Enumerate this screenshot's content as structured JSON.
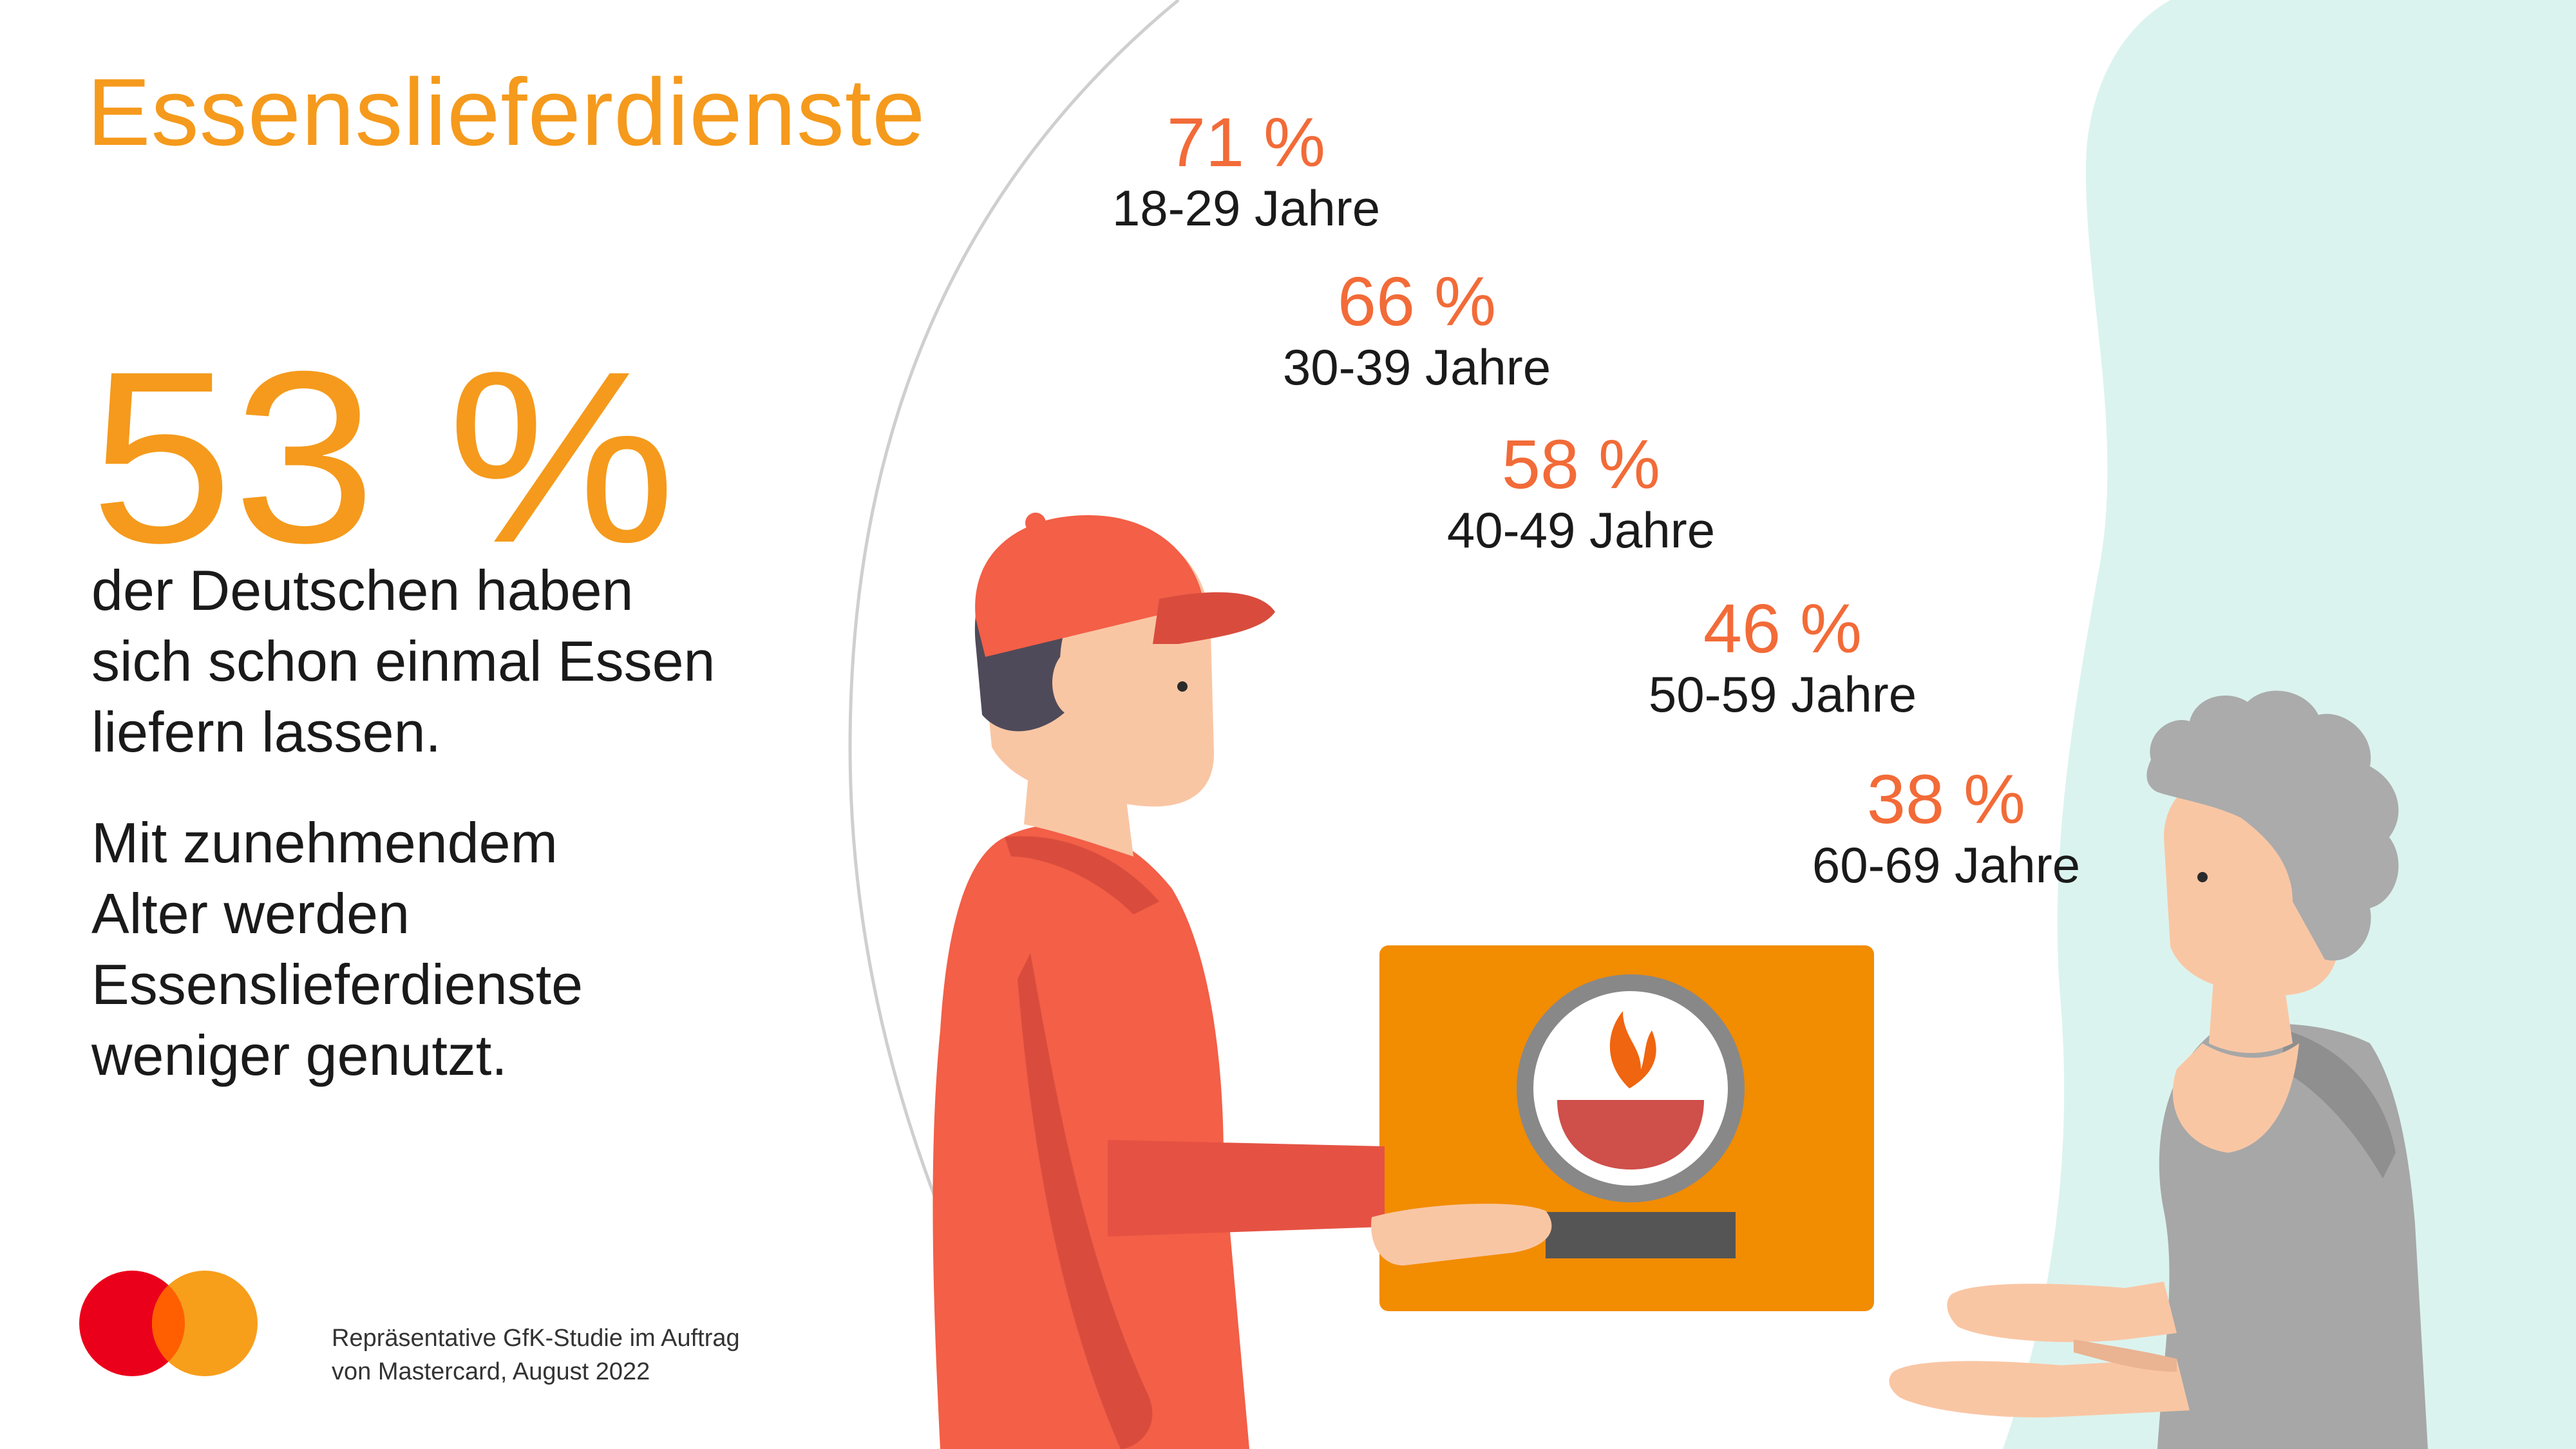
{
  "title": "Essenslieferdienste",
  "headline_stat": "53 %",
  "description_lines": [
    "der Deutschen haben",
    "sich schon einmal Essen",
    "liefern lassen."
  ],
  "trend_lines": [
    "Mit zunehmendem",
    "Alter werden",
    "Essenslieferdienste",
    "weniger genutzt."
  ],
  "age_stats": [
    {
      "value": "71 %",
      "age": "18-29 Jahre"
    },
    {
      "value": "66 %",
      "age": "30-39 Jahre"
    },
    {
      "value": "58 %",
      "age": "40-49 Jahre"
    },
    {
      "value": "46 %",
      "age": "50-59 Jahre"
    },
    {
      "value": "38 %",
      "age": "60-69 Jahre"
    }
  ],
  "source_lines": [
    "Repräsentative GfK-Studie im Auftrag",
    "von Mastercard, August 2022"
  ],
  "icons": {
    "logo": "mastercard-logo",
    "courier": "delivery-person-illustration",
    "customer": "elderly-woman-illustration",
    "box": "food-box-with-bowl-icon"
  },
  "colors": {
    "accent_orange": "#f59a1c",
    "stat_orange": "#f26b38",
    "courier_red": "#f35f47",
    "box_orange": "#f28c00",
    "mint": "#dbf3ee",
    "mc_red": "#eb001b",
    "mc_yellow": "#f79e1b"
  }
}
